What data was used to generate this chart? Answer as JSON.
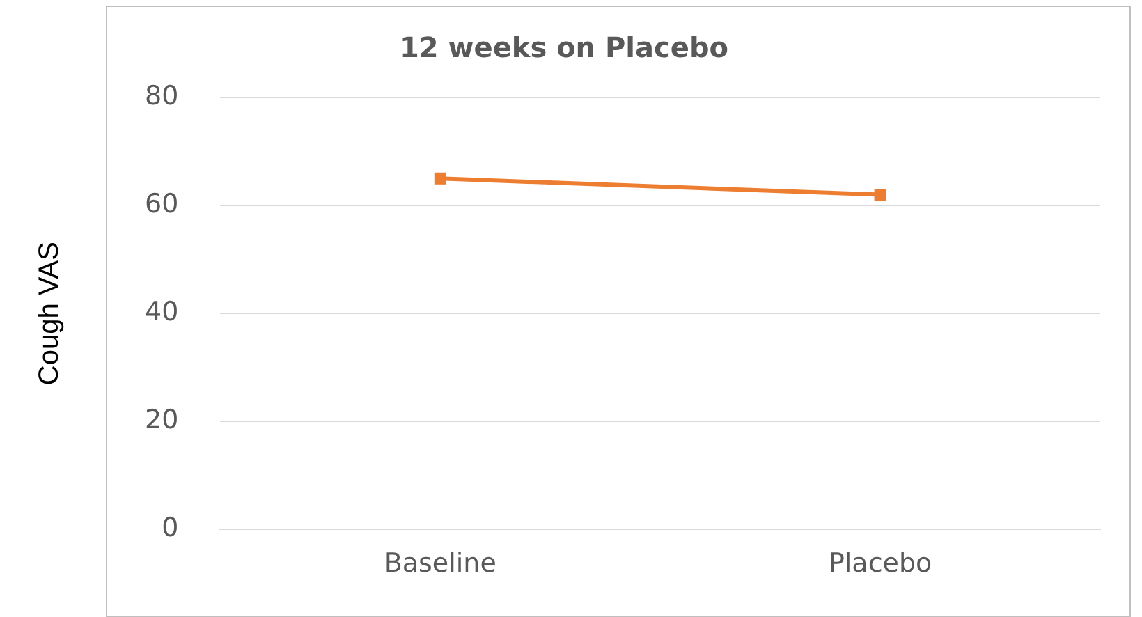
{
  "chart_data": {
    "type": "line",
    "title": "12 weeks on Placebo",
    "ylabel": "Cough VAS",
    "categories": [
      "Baseline",
      "Placebo"
    ],
    "series": [
      {
        "color": "#ed7d31",
        "values": [
          65,
          62
        ]
      }
    ],
    "ylim": [
      0,
      80
    ],
    "yticks": [
      0,
      20,
      40,
      60,
      80
    ],
    "grid": "y",
    "legend": false,
    "marker": "square",
    "line_style": "solid"
  }
}
